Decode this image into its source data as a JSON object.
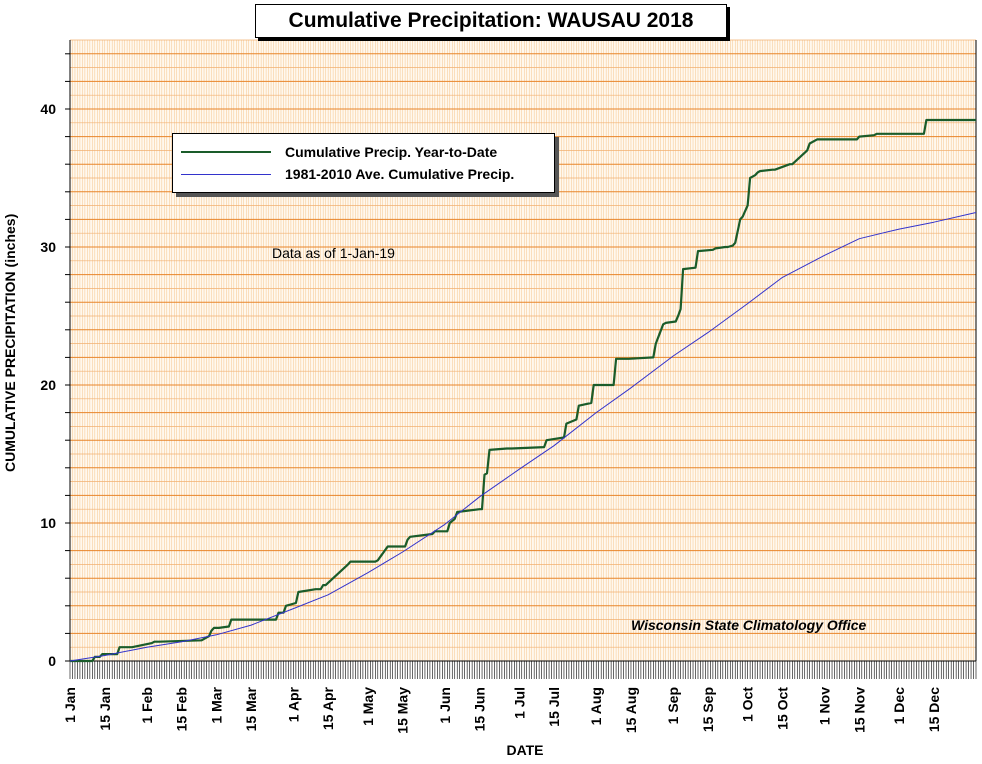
{
  "chart_data": {
    "type": "line",
    "title": "Cumulative Precipitation: WAUSAU 2018",
    "xlabel": "DATE",
    "ylabel": "CUMULATIVE PRECIPITATION (inches)",
    "annotation": "Data as of 1-Jan-19",
    "credit": "Wisconsin State Climatology Office",
    "xlim_days": [
      1,
      366
    ],
    "ylim": [
      0,
      45
    ],
    "y_ticks": [
      0,
      10,
      20,
      30,
      40
    ],
    "x_tick_labels": [
      "1 Jan",
      "15 Jan",
      "1 Feb",
      "15 Feb",
      "1 Mar",
      "15 Mar",
      "1 Apr",
      "15 Apr",
      "1 May",
      "15 May",
      "1 Jun",
      "15 Jun",
      "1 Jul",
      "15 Jul",
      "1 Aug",
      "15 Aug",
      "1 Sep",
      "15 Sep",
      "1 Oct",
      "15 Oct",
      "1 Nov",
      "15 Nov",
      "1 Dec",
      "15 Dec"
    ],
    "x_tick_days": [
      1,
      15,
      32,
      46,
      60,
      74,
      91,
      105,
      121,
      135,
      152,
      166,
      182,
      196,
      213,
      227,
      244,
      258,
      274,
      288,
      305,
      319,
      335,
      349
    ],
    "grid": true,
    "legend_position": "top-left",
    "series": [
      {
        "name": "Cumulative Precip. Year-to-Date",
        "color": "#1a5c2a",
        "x": [
          1,
          10,
          11,
          13,
          14,
          20,
          21,
          25,
          26,
          34,
          35,
          36,
          37,
          54,
          55,
          56,
          57,
          58,
          59,
          60,
          61,
          65,
          66,
          80,
          81,
          84,
          85,
          86,
          87,
          88,
          92,
          93,
          100,
          101,
          102,
          103,
          104,
          113,
          114,
          119,
          120,
          121,
          122,
          124,
          125,
          129,
          136,
          137,
          138,
          147,
          148,
          153,
          154,
          156,
          157,
          166,
          167,
          168,
          169,
          170,
          170,
          177,
          179,
          192,
          193,
          200,
          201,
          205,
          206,
          211,
          212,
          220,
          221,
          225,
          226,
          236,
          237,
          240,
          241,
          245,
          246,
          247,
          248,
          253,
          254,
          260,
          261,
          265,
          266,
          268,
          269,
          271,
          272,
          274,
          275,
          276,
          277,
          278,
          279,
          284,
          285,
          291,
          292,
          298,
          299,
          302,
          304,
          318,
          319,
          325,
          326,
          332,
          333,
          345,
          346,
          346,
          366
        ],
        "y": [
          0,
          0,
          0.3,
          0.3,
          0.5,
          0.5,
          1.0,
          1.0,
          1.0,
          1.3,
          1.4,
          1.4,
          1.4,
          1.5,
          1.6,
          1.7,
          1.8,
          2.2,
          2.4,
          2.4,
          2.4,
          2.5,
          3.0,
          3.0,
          3.0,
          3.0,
          3.5,
          3.5,
          3.5,
          4.0,
          4.2,
          5.0,
          5.2,
          5.2,
          5.2,
          5.5,
          5.5,
          7.0,
          7.2,
          7.2,
          7.2,
          7.2,
          7.2,
          7.2,
          7.3,
          8.3,
          8.3,
          8.8,
          9.0,
          9.2,
          9.4,
          9.4,
          10.0,
          10.3,
          10.8,
          11.0,
          11.0,
          13.5,
          13.6,
          15.3,
          15.3,
          15.4,
          15.4,
          15.5,
          16.0,
          16.2,
          17.2,
          17.5,
          18.5,
          18.7,
          20.0,
          20.0,
          21.9,
          21.9,
          21.9,
          22.0,
          23.0,
          24.4,
          24.5,
          24.6,
          25.0,
          25.5,
          28.4,
          28.5,
          29.7,
          29.8,
          29.9,
          30.0,
          30.0,
          30.1,
          30.3,
          32.0,
          32.2,
          33.0,
          35.0,
          35.1,
          35.2,
          35.4,
          35.5,
          35.6,
          35.6,
          36.0,
          36.0,
          37.0,
          37.5,
          37.8,
          37.8,
          37.8,
          38.0,
          38.1,
          38.2,
          38.2,
          38.2,
          38.2,
          39.2,
          39.2,
          39.2
        ]
      },
      {
        "name": "1981-2010 Ave. Cumulative Precip.",
        "color": "#3333cc",
        "x": [
          1,
          15,
          32,
          46,
          60,
          74,
          91,
          105,
          121,
          135,
          152,
          166,
          182,
          196,
          213,
          227,
          244,
          258,
          274,
          288,
          305,
          319,
          335,
          349,
          366
        ],
        "y": [
          0,
          0.4,
          1.0,
          1.4,
          1.9,
          2.6,
          3.8,
          4.8,
          6.4,
          7.9,
          9.9,
          11.9,
          13.9,
          15.6,
          18.0,
          19.8,
          22.1,
          23.8,
          25.9,
          27.8,
          29.4,
          30.6,
          31.3,
          31.8,
          32.5
        ]
      }
    ]
  }
}
